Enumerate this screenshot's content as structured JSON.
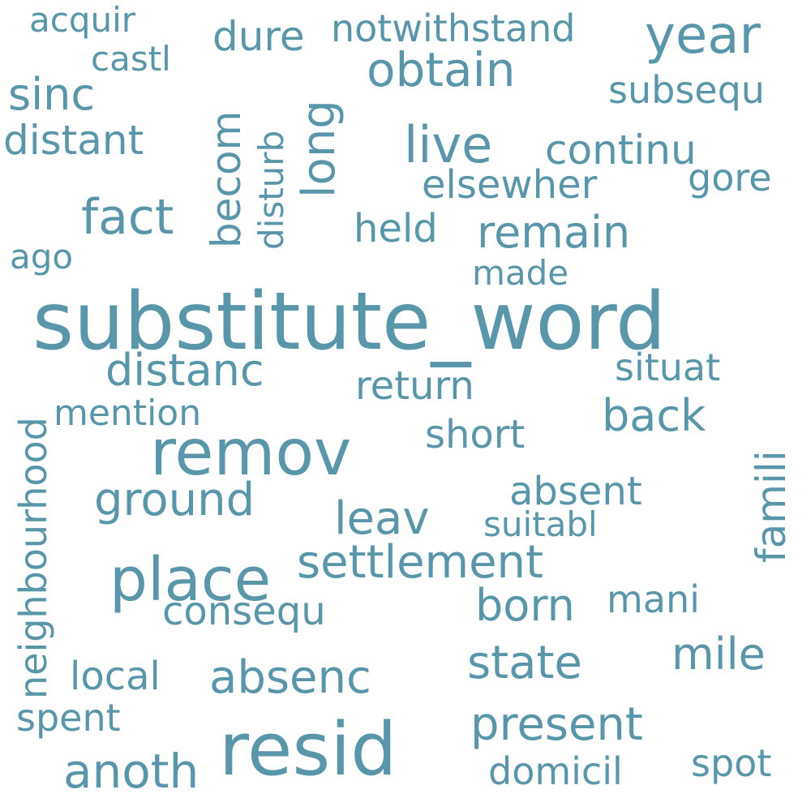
{
  "cloud": {
    "color": "#5a96aa",
    "words": {
      "substitute_word": "substitute_word",
      "resid": "resid",
      "remov": "remov",
      "place": "place",
      "year": "year",
      "obtain": "obtain",
      "live": "live",
      "fact": "fact",
      "settlement": "settlement",
      "anoth": "anoth",
      "present": "present",
      "absenc": "absenc",
      "state": "state",
      "ground": "ground",
      "leav": "leav",
      "born": "born",
      "distanc": "distanc",
      "remain": "remain",
      "back": "back",
      "mile": "mile",
      "sinc": "sinc",
      "dure": "dure",
      "distant": "distant",
      "continu": "continu",
      "elsewher": "elsewher",
      "held": "held",
      "return": "return",
      "short": "short",
      "absent": "absent",
      "consequ": "consequ",
      "local": "local",
      "spent": "spent",
      "spot": "spot",
      "domicil": "domicil",
      "notwithstand": "notwithstand",
      "subsequ": "subsequ",
      "gore": "gore",
      "situat": "situat",
      "mani": "mani",
      "castl": "castl",
      "acquir": "acquir",
      "mention": "mention",
      "suitabl": "suitabl",
      "made": "made",
      "ago": "ago",
      "neighbourhood": "neighbourhood",
      "famili": "famili",
      "becom": "becom",
      "disturb": "disturb",
      "long": "long"
    }
  }
}
